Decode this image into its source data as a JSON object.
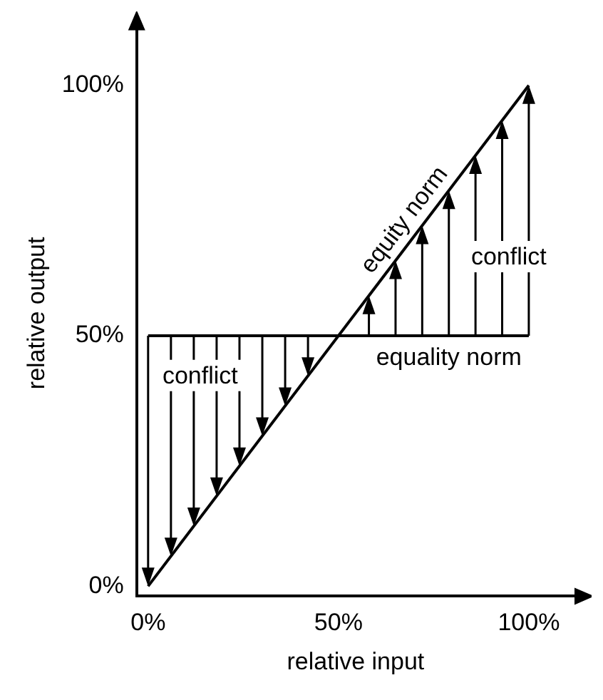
{
  "chart_data": {
    "type": "line",
    "xlabel": "relative input",
    "ylabel": "relative output",
    "xlim": [
      -3,
      112
    ],
    "ylim": [
      -2,
      111
    ],
    "xticks": [
      {
        "value": 0,
        "label": "0%"
      },
      {
        "value": 50,
        "label": "50%"
      },
      {
        "value": 100,
        "label": "100%"
      }
    ],
    "yticks": [
      {
        "value": 0,
        "label": "0%"
      },
      {
        "value": 50,
        "label": "50%"
      },
      {
        "value": 100,
        "label": "100%"
      }
    ],
    "series": [
      {
        "color": "#000000",
        "values": [
          0,
          100
        ]
      },
      {
        "color": "#000000",
        "values": [
          50,
          50
        ]
      }
    ],
    "x": [
      0,
      100
    ],
    "annotations": [
      {
        "text": "equity norm",
        "x": 71,
        "y": 71
      },
      {
        "text": "equality norm",
        "x": 79,
        "y": 50
      },
      "conflict",
      "conflict"
    ],
    "grid": false,
    "legend": false,
    "marker": "none",
    "line_style": "solid"
  }
}
